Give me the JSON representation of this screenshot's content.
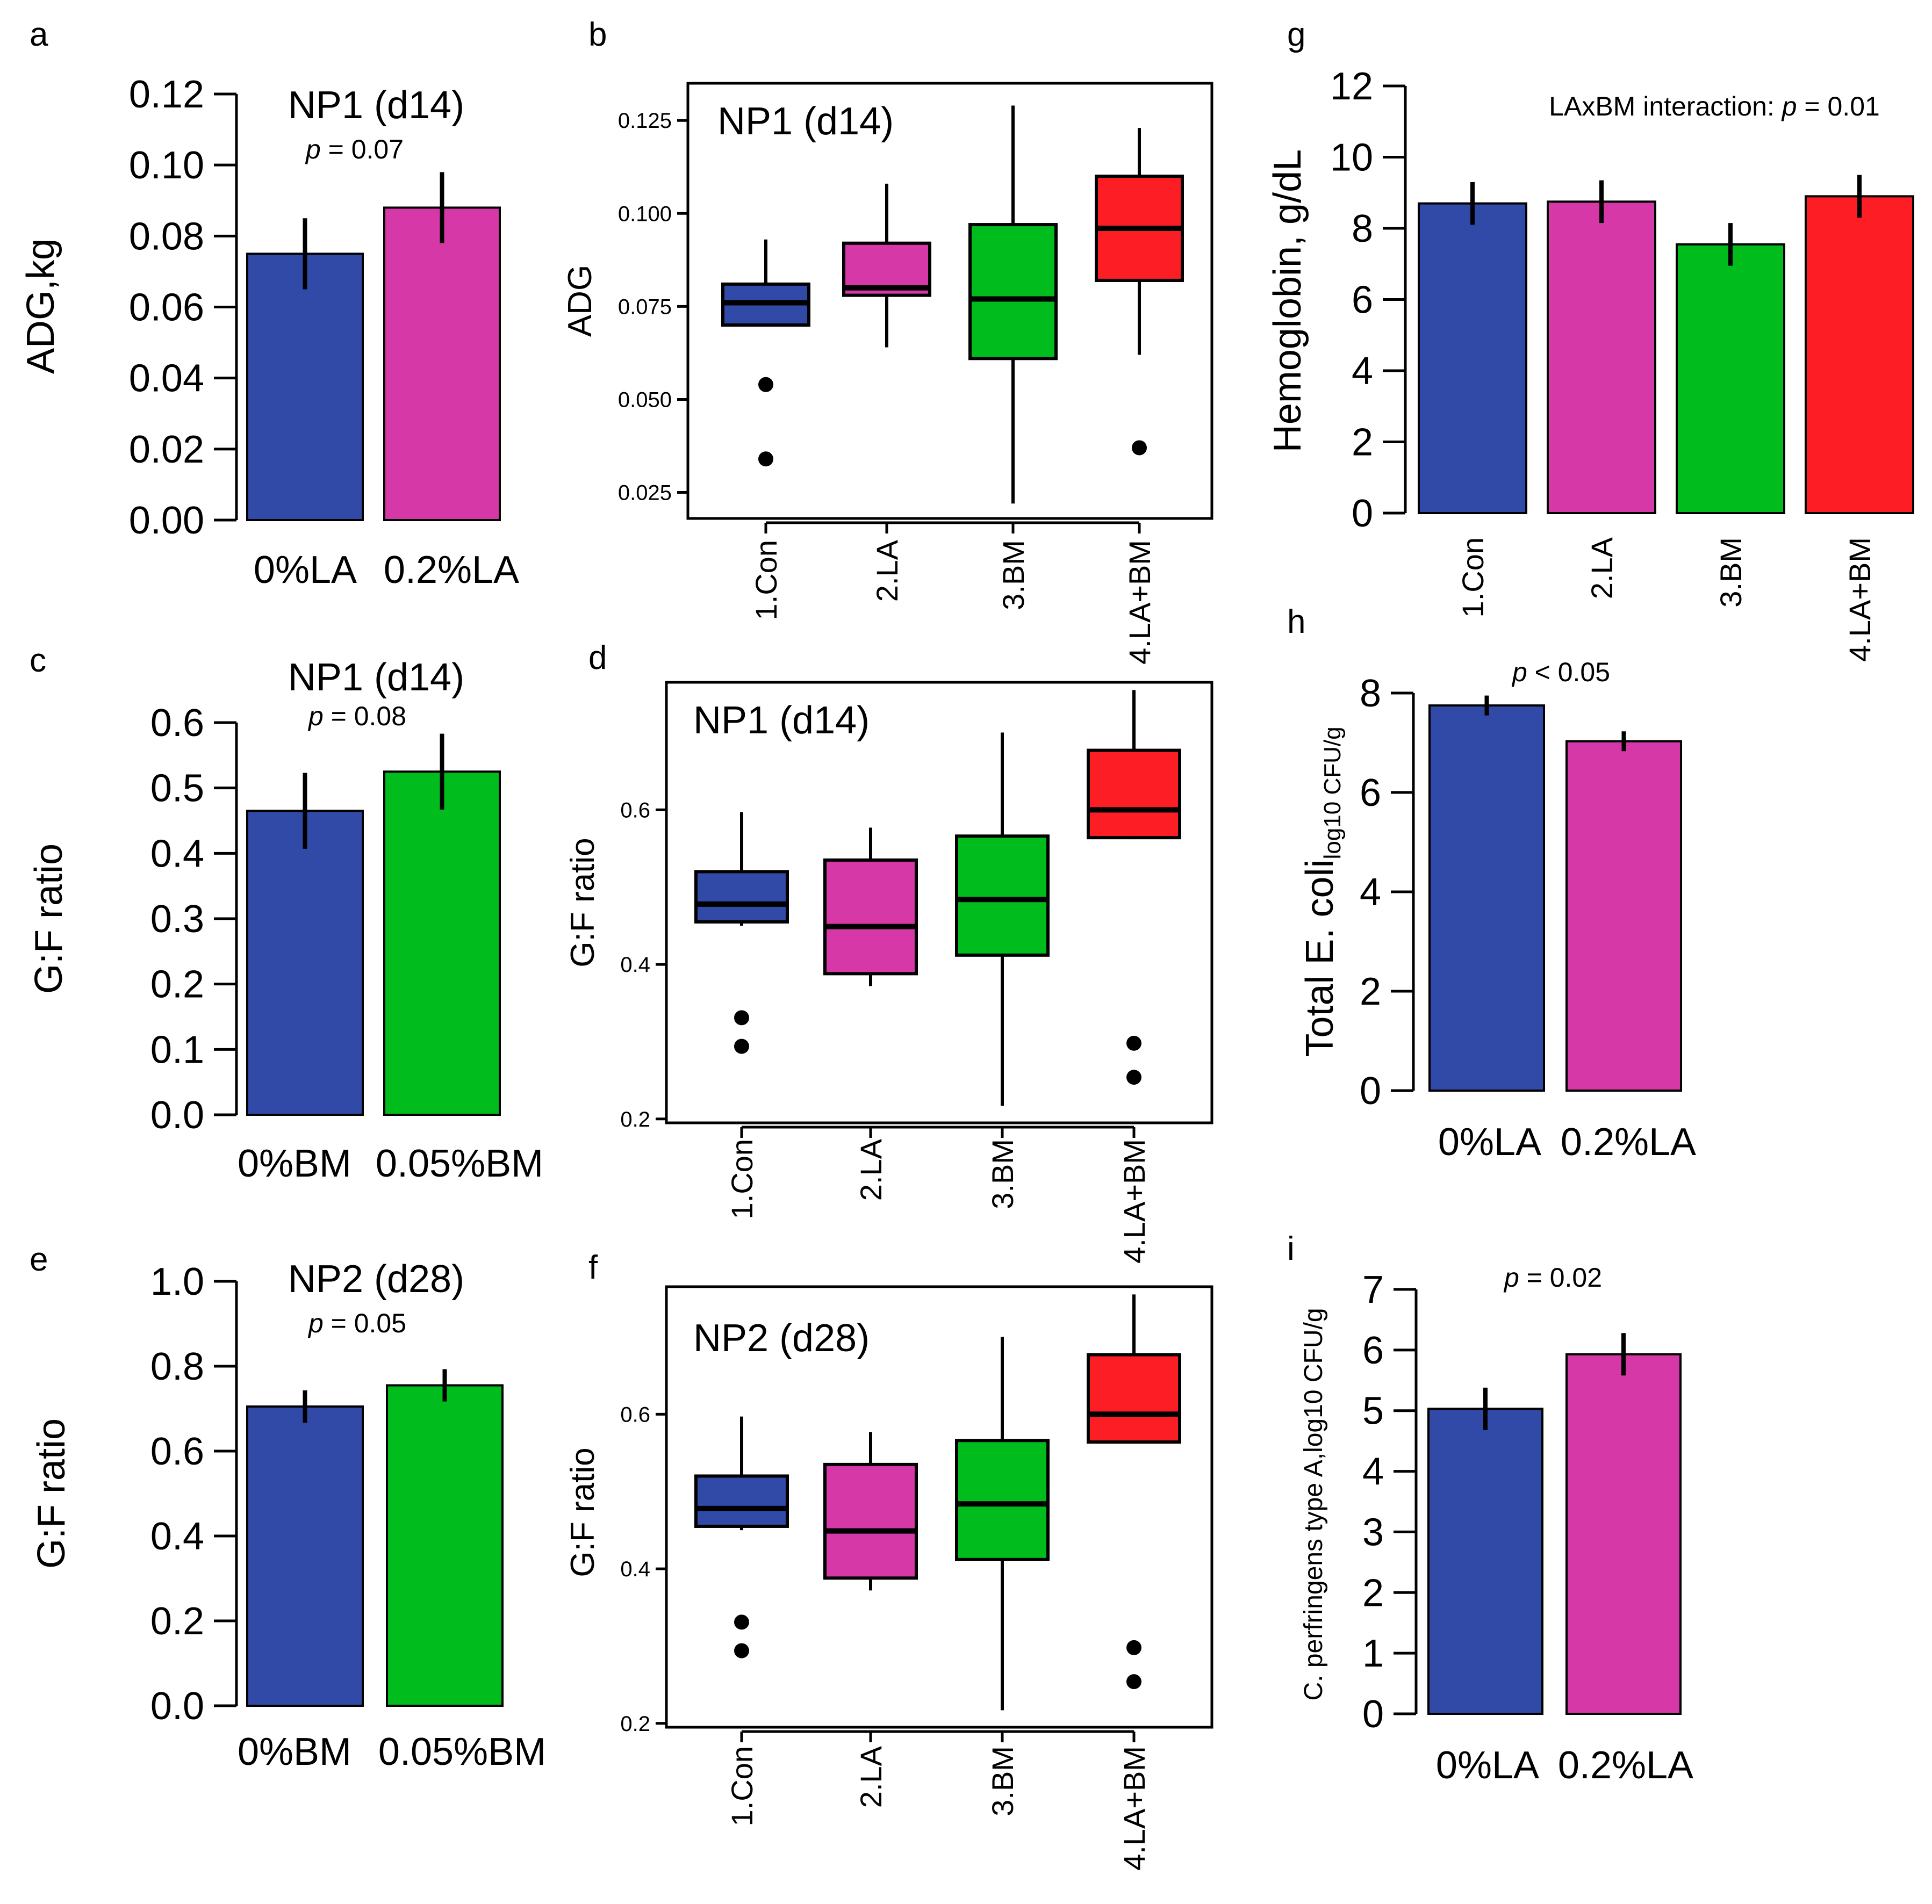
{
  "colors": {
    "blue": "#314aa8",
    "magenta": "#d638a8",
    "green": "#00bd1d",
    "red": "#fc1d25"
  },
  "chart_data": [
    {
      "id": "a",
      "panel_label": "a",
      "type": "bar",
      "title": "NP1 (d14)",
      "p_prefix": "p",
      "p_value": " = 0.07",
      "ylabel": "ADG,kg",
      "ylim": [
        0,
        0.12
      ],
      "yticks": [
        "0.00",
        "0.02",
        "0.04",
        "0.06",
        "0.08",
        "0.10",
        "0.12"
      ],
      "categories": [
        "0%LA",
        "0.2%LA"
      ],
      "values": [
        0.075,
        0.088
      ],
      "errors": [
        0.01,
        0.01
      ],
      "colors": [
        "blue",
        "magenta"
      ]
    },
    {
      "id": "b",
      "panel_label": "b",
      "type": "boxplot",
      "title": "NP1 (d14)",
      "ylabel": "ADG",
      "ylim": [
        0.018,
        0.135
      ],
      "yticks": [
        "0.025",
        "0.050",
        "0.075",
        "0.100",
        "0.125"
      ],
      "categories": [
        "1.Con",
        "2.LA",
        "3.BM",
        "4.LA+BM"
      ],
      "colors": [
        "blue",
        "magenta",
        "green",
        "red"
      ],
      "boxes": [
        {
          "q1": 0.07,
          "median": 0.076,
          "q3": 0.081,
          "whisker_low": 0.07,
          "whisker_high": 0.093,
          "outliers": [
            0.054,
            0.034
          ]
        },
        {
          "q1": 0.078,
          "median": 0.08,
          "q3": 0.092,
          "whisker_low": 0.064,
          "whisker_high": 0.108,
          "outliers": []
        },
        {
          "q1": 0.061,
          "median": 0.077,
          "q3": 0.097,
          "whisker_low": 0.022,
          "whisker_high": 0.129,
          "outliers": []
        },
        {
          "q1": 0.082,
          "median": 0.096,
          "q3": 0.11,
          "whisker_low": 0.062,
          "whisker_high": 0.123,
          "outliers": [
            0.037
          ]
        }
      ]
    },
    {
      "id": "c",
      "panel_label": "c",
      "type": "bar",
      "title": "NP1 (d14)",
      "p_prefix": "p",
      "p_value": " = 0.08",
      "ylabel": "G:F ratio",
      "ylim": [
        0,
        0.6
      ],
      "yticks": [
        "0.0",
        "0.1",
        "0.2",
        "0.3",
        "0.4",
        "0.5",
        "0.6"
      ],
      "categories": [
        "0%BM",
        "0.05%BM"
      ],
      "values": [
        0.465,
        0.525
      ],
      "errors": [
        0.058,
        0.058
      ],
      "colors": [
        "blue",
        "green"
      ]
    },
    {
      "id": "d",
      "panel_label": "d",
      "type": "boxplot",
      "title": "NP1 (d14)",
      "ylabel": "G:F ratio",
      "ylim": [
        0.195,
        0.765
      ],
      "yticks": [
        "0.2",
        "0.4",
        "0.6"
      ],
      "categories": [
        "1.Con",
        "2.LA",
        "3.BM",
        "4.LA+BM"
      ],
      "colors": [
        "blue",
        "magenta",
        "green",
        "red"
      ],
      "boxes": [
        {
          "q1": 0.455,
          "median": 0.478,
          "q3": 0.52,
          "whisker_low": 0.45,
          "whisker_high": 0.597,
          "outliers": [
            0.331,
            0.294
          ]
        },
        {
          "q1": 0.388,
          "median": 0.449,
          "q3": 0.535,
          "whisker_low": 0.372,
          "whisker_high": 0.577,
          "outliers": []
        },
        {
          "q1": 0.412,
          "median": 0.484,
          "q3": 0.566,
          "whisker_low": 0.217,
          "whisker_high": 0.7,
          "outliers": []
        },
        {
          "q1": 0.564,
          "median": 0.6,
          "q3": 0.677,
          "whisker_low": 0.562,
          "whisker_high": 0.755,
          "outliers": [
            0.298,
            0.254
          ]
        }
      ]
    },
    {
      "id": "e",
      "panel_label": "e",
      "type": "bar",
      "title": "NP2 (d28)",
      "p_prefix": "p",
      "p_value": " = 0.05",
      "ylabel": "G:F ratio",
      "ylim": [
        0,
        1.0
      ],
      "yticks": [
        "0.0",
        "0.2",
        "0.4",
        "0.6",
        "0.8",
        "1.0"
      ],
      "categories": [
        "0%BM",
        "0.05%BM"
      ],
      "values": [
        0.705,
        0.755
      ],
      "errors": [
        0.038,
        0.038
      ],
      "colors": [
        "blue",
        "green"
      ]
    },
    {
      "id": "f",
      "panel_label": "f",
      "type": "boxplot",
      "title": "NP2 (d28)",
      "ylabel": "G:F ratio",
      "ylim": [
        0.195,
        0.765
      ],
      "yticks": [
        "0.2",
        "0.4",
        "0.6"
      ],
      "categories": [
        "1.Con",
        "2.LA",
        "3.BM",
        "4.LA+BM"
      ],
      "colors": [
        "blue",
        "magenta",
        "green",
        "red"
      ],
      "boxes": [
        {
          "q1": 0.455,
          "median": 0.478,
          "q3": 0.52,
          "whisker_low": 0.45,
          "whisker_high": 0.597,
          "outliers": [
            0.331,
            0.294
          ]
        },
        {
          "q1": 0.388,
          "median": 0.449,
          "q3": 0.535,
          "whisker_low": 0.372,
          "whisker_high": 0.577,
          "outliers": []
        },
        {
          "q1": 0.412,
          "median": 0.484,
          "q3": 0.566,
          "whisker_low": 0.217,
          "whisker_high": 0.7,
          "outliers": []
        },
        {
          "q1": 0.564,
          "median": 0.6,
          "q3": 0.677,
          "whisker_low": 0.562,
          "whisker_high": 0.755,
          "outliers": [
            0.298,
            0.254
          ]
        }
      ]
    },
    {
      "id": "g",
      "panel_label": "g",
      "type": "bar",
      "p_text": "LAxBM interaction: ",
      "p_prefix": "p",
      "p_value": " = 0.01",
      "ylabel": "Hemoglobin, g/dL",
      "ylim": [
        0,
        12
      ],
      "yticks": [
        "0",
        "2",
        "4",
        "6",
        "8",
        "10",
        "12"
      ],
      "categories": [
        "1.Con",
        "2.LA",
        "3.BM",
        "4.LA+BM"
      ],
      "values": [
        8.7,
        8.75,
        7.55,
        8.9
      ],
      "errors": [
        0.6,
        0.6,
        0.6,
        0.6
      ],
      "colors": [
        "blue",
        "magenta",
        "green",
        "red"
      ]
    },
    {
      "id": "h",
      "panel_label": "h",
      "type": "bar",
      "p_prefix": "p",
      "p_value": " < 0.05",
      "ylabel": "Total E. coli",
      "ylabel_sub": "log10 CFU/g",
      "ylim": [
        0,
        8
      ],
      "yticks": [
        "0",
        "2",
        "4",
        "6",
        "8"
      ],
      "categories": [
        "0%LA",
        "0.2%LA"
      ],
      "values": [
        7.75,
        7.03
      ],
      "errors": [
        0.2,
        0.2
      ],
      "colors": [
        "blue",
        "magenta"
      ]
    },
    {
      "id": "i",
      "panel_label": "i",
      "type": "bar",
      "p_prefix": "p",
      "p_value": " = 0.02",
      "ylabel": "C. perfringens type A,log10 CFU/g",
      "ylim": [
        0,
        7
      ],
      "yticks": [
        "0",
        "1",
        "2",
        "3",
        "4",
        "5",
        "6",
        "7"
      ],
      "categories": [
        "0%LA",
        "0.2%LA"
      ],
      "values": [
        5.03,
        5.93
      ],
      "errors": [
        0.35,
        0.35
      ],
      "colors": [
        "blue",
        "magenta"
      ]
    }
  ]
}
